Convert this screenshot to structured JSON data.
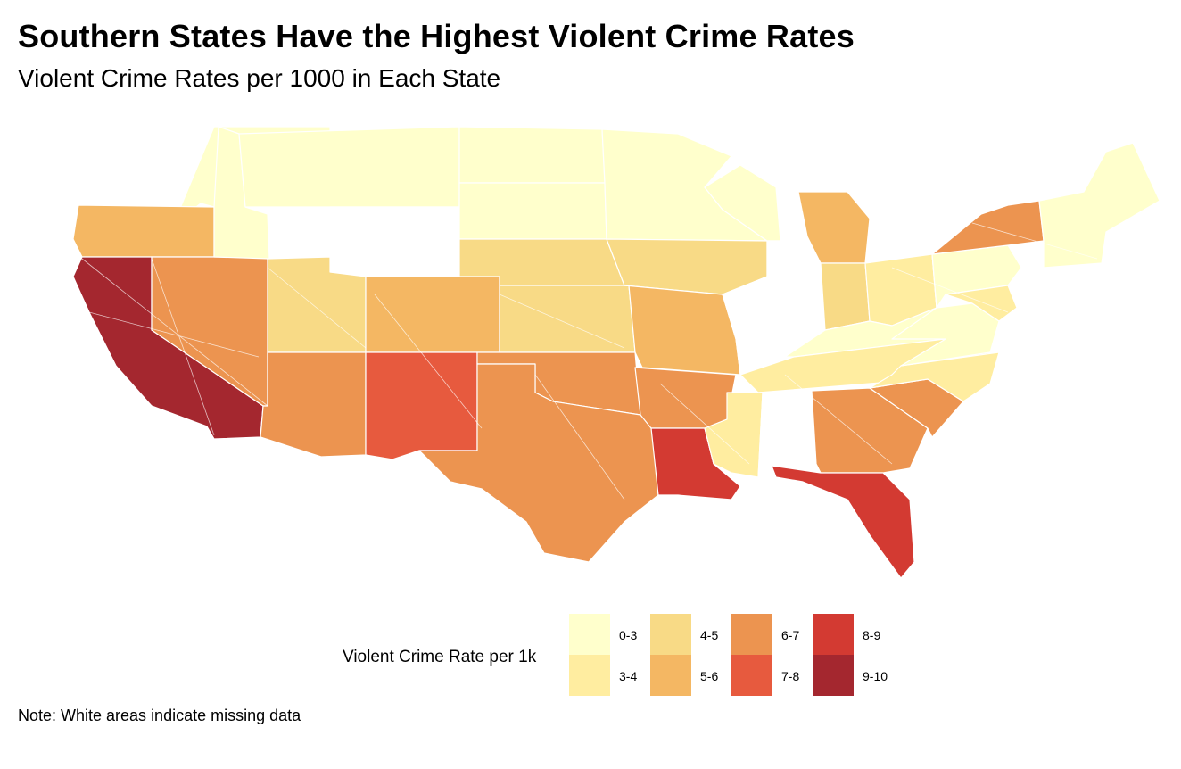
{
  "title": "Southern States Have the Highest Violent Crime Rates",
  "subtitle": "Violent Crime Rates per 1000 in Each State",
  "note": "Note: White areas indicate missing data",
  "legend": {
    "title": "Violent Crime Rate per 1k",
    "bins": [
      {
        "label": "0-3",
        "color": "#FFFFCC"
      },
      {
        "label": "3-4",
        "color": "#FFEDA0"
      },
      {
        "label": "4-5",
        "color": "#F8DA86"
      },
      {
        "label": "5-6",
        "color": "#F4B763"
      },
      {
        "label": "6-7",
        "color": "#EC9450"
      },
      {
        "label": "7-8",
        "color": "#E75A3E"
      },
      {
        "label": "8-9",
        "color": "#D33A32"
      },
      {
        "label": "9-10",
        "color": "#A4272F"
      }
    ]
  },
  "map": {
    "missing_color": "#FFFFFF",
    "states": [
      {
        "name": "Washington",
        "bin": "0-3"
      },
      {
        "name": "Oregon",
        "bin": "5-6"
      },
      {
        "name": "California",
        "bin": "9-10"
      },
      {
        "name": "Nevada",
        "bin": "6-7"
      },
      {
        "name": "Idaho",
        "bin": "0-3"
      },
      {
        "name": "Montana",
        "bin": "0-3"
      },
      {
        "name": "Wyoming",
        "bin": "missing"
      },
      {
        "name": "Utah",
        "bin": "4-5"
      },
      {
        "name": "Arizona",
        "bin": "6-7"
      },
      {
        "name": "Colorado",
        "bin": "5-6"
      },
      {
        "name": "New Mexico",
        "bin": "7-8"
      },
      {
        "name": "North Dakota",
        "bin": "0-3"
      },
      {
        "name": "South Dakota",
        "bin": "0-3"
      },
      {
        "name": "Nebraska",
        "bin": "4-5"
      },
      {
        "name": "Kansas",
        "bin": "4-5"
      },
      {
        "name": "Oklahoma",
        "bin": "6-7"
      },
      {
        "name": "Texas",
        "bin": "6-7"
      },
      {
        "name": "Minnesota",
        "bin": "0-3"
      },
      {
        "name": "Iowa",
        "bin": "4-5"
      },
      {
        "name": "Missouri",
        "bin": "5-6"
      },
      {
        "name": "Arkansas",
        "bin": "6-7"
      },
      {
        "name": "Louisiana",
        "bin": "8-9"
      },
      {
        "name": "Wisconsin",
        "bin": "0-3"
      },
      {
        "name": "Illinois",
        "bin": "missing"
      },
      {
        "name": "Michigan",
        "bin": "5-6"
      },
      {
        "name": "Indiana",
        "bin": "4-5"
      },
      {
        "name": "Ohio",
        "bin": "3-4"
      },
      {
        "name": "Kentucky",
        "bin": "0-3"
      },
      {
        "name": "Tennessee",
        "bin": "3-4"
      },
      {
        "name": "Mississippi",
        "bin": "3-4"
      },
      {
        "name": "Alabama",
        "bin": "missing"
      },
      {
        "name": "Georgia",
        "bin": "6-7"
      },
      {
        "name": "Florida",
        "bin": "8-9"
      },
      {
        "name": "South Carolina",
        "bin": "6-7"
      },
      {
        "name": "North Carolina",
        "bin": "3-4"
      },
      {
        "name": "Virginia",
        "bin": "0-3"
      },
      {
        "name": "West Virginia",
        "bin": "3-4"
      },
      {
        "name": "Pennsylvania",
        "bin": "0-3"
      },
      {
        "name": "New York",
        "bin": "3-4"
      },
      {
        "name": "Maryland",
        "bin": "6-7"
      },
      {
        "name": "New England",
        "bin": "0-3"
      }
    ]
  }
}
